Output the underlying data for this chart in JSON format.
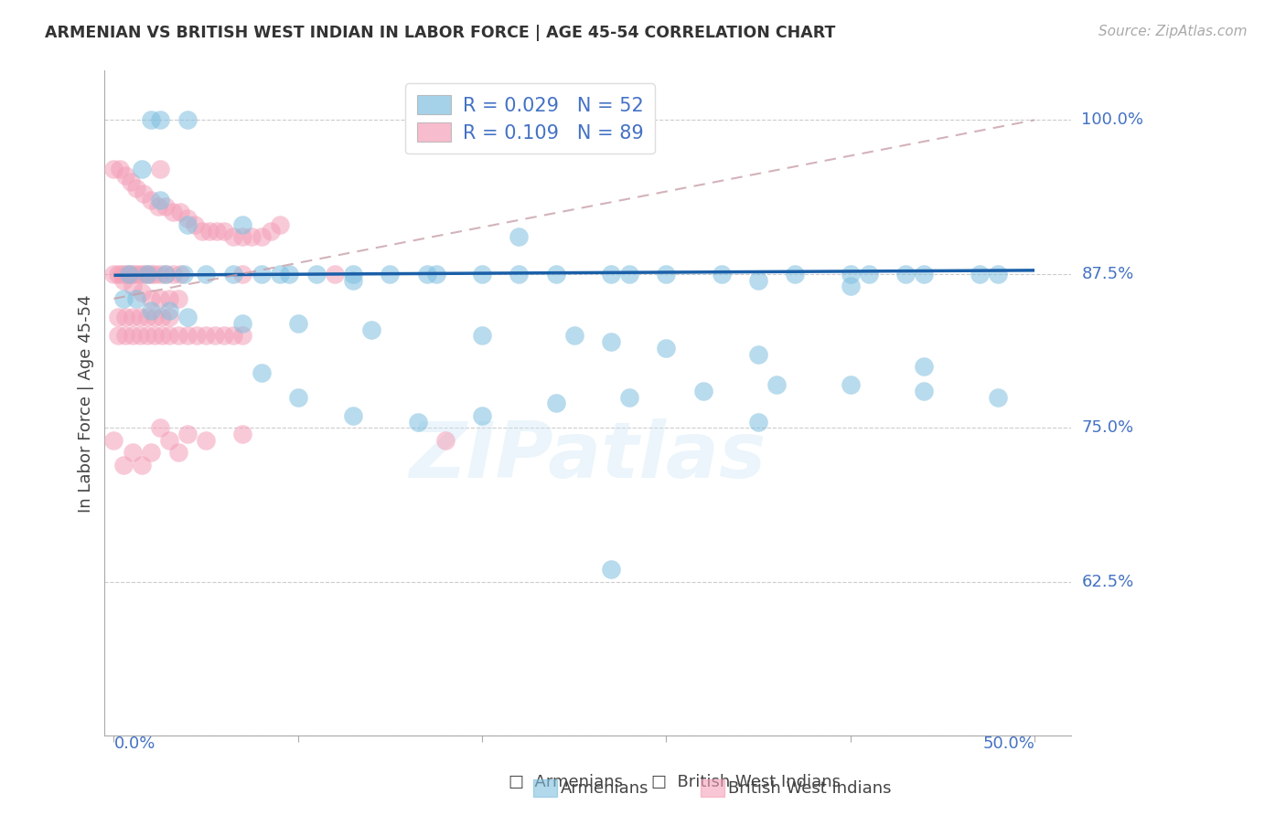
{
  "title": "ARMENIAN VS BRITISH WEST INDIAN IN LABOR FORCE | AGE 45-54 CORRELATION CHART",
  "source": "Source: ZipAtlas.com",
  "ylabel": "In Labor Force | Age 45-54",
  "ytick_positions": [
    0.625,
    0.75,
    0.875,
    1.0
  ],
  "ytick_labels": [
    "62.5%",
    "75.0%",
    "87.5%",
    "100.0%"
  ],
  "xtick_positions": [
    0.0,
    0.5
  ],
  "xtick_labels": [
    "0.0%",
    "50.0%"
  ],
  "armenian_color": "#7fbfdf",
  "bwi_color": "#f4a0b8",
  "trend_armenian_color": "#1a5fa8",
  "trend_bwi_color": "#c8a0a8",
  "background_color": "#ffffff",
  "watermark": "ZIPatlas",
  "xlim": [
    -0.005,
    0.52
  ],
  "ylim": [
    0.5,
    1.04
  ],
  "armenian_x": [
    0.02,
    0.025,
    0.04,
    0.015,
    0.025,
    0.04,
    0.07,
    0.09,
    0.13,
    0.17,
    0.22,
    0.28,
    0.35,
    0.4,
    0.43,
    0.47,
    0.008,
    0.018,
    0.028,
    0.038,
    0.05,
    0.065,
    0.08,
    0.095,
    0.11,
    0.13,
    0.15,
    0.175,
    0.2,
    0.24,
    0.27,
    0.3,
    0.33,
    0.37,
    0.41,
    0.44,
    0.48,
    0.22,
    0.4,
    0.005,
    0.012,
    0.02,
    0.03,
    0.04,
    0.07,
    0.1,
    0.14,
    0.2,
    0.27,
    0.35,
    0.44
  ],
  "armenian_y": [
    1.0,
    1.0,
    1.0,
    0.96,
    0.935,
    0.915,
    0.915,
    0.875,
    0.87,
    0.875,
    0.875,
    0.875,
    0.87,
    0.875,
    0.875,
    0.875,
    0.875,
    0.875,
    0.875,
    0.875,
    0.875,
    0.875,
    0.875,
    0.875,
    0.875,
    0.875,
    0.875,
    0.875,
    0.875,
    0.875,
    0.875,
    0.875,
    0.875,
    0.875,
    0.875,
    0.875,
    0.875,
    0.905,
    0.865,
    0.855,
    0.855,
    0.845,
    0.845,
    0.84,
    0.835,
    0.835,
    0.83,
    0.825,
    0.82,
    0.81,
    0.8
  ],
  "armenian_x2": [
    0.08,
    0.1,
    0.13,
    0.165,
    0.2,
    0.24,
    0.28,
    0.32,
    0.36,
    0.4,
    0.44,
    0.48,
    0.27,
    0.35,
    0.25,
    0.3
  ],
  "armenian_y2": [
    0.795,
    0.775,
    0.76,
    0.755,
    0.76,
    0.77,
    0.775,
    0.78,
    0.785,
    0.785,
    0.78,
    0.775,
    0.635,
    0.755,
    0.825,
    0.815
  ],
  "bwi_x": [
    0.0,
    0.002,
    0.004,
    0.006,
    0.008,
    0.01,
    0.012,
    0.014,
    0.016,
    0.018,
    0.02,
    0.022,
    0.025,
    0.028,
    0.032,
    0.036,
    0.0,
    0.003,
    0.006,
    0.009,
    0.012,
    0.016,
    0.02,
    0.024,
    0.028,
    0.032,
    0.036,
    0.04,
    0.044,
    0.048,
    0.052,
    0.056,
    0.06,
    0.065,
    0.07,
    0.075,
    0.08,
    0.085,
    0.09,
    0.005,
    0.01,
    0.015,
    0.02,
    0.025,
    0.03,
    0.035,
    0.002,
    0.006,
    0.01,
    0.014,
    0.018,
    0.022,
    0.026,
    0.03,
    0.002,
    0.006,
    0.01,
    0.014,
    0.018,
    0.022,
    0.026,
    0.03,
    0.035,
    0.04,
    0.045,
    0.05,
    0.055,
    0.06,
    0.065,
    0.07,
    0.025,
    0.18,
    0.12,
    0.07
  ],
  "bwi_y": [
    0.875,
    0.875,
    0.875,
    0.875,
    0.875,
    0.875,
    0.875,
    0.875,
    0.875,
    0.875,
    0.875,
    0.875,
    0.875,
    0.875,
    0.875,
    0.875,
    0.96,
    0.96,
    0.955,
    0.95,
    0.945,
    0.94,
    0.935,
    0.93,
    0.93,
    0.925,
    0.925,
    0.92,
    0.915,
    0.91,
    0.91,
    0.91,
    0.91,
    0.905,
    0.905,
    0.905,
    0.905,
    0.91,
    0.915,
    0.87,
    0.865,
    0.86,
    0.855,
    0.855,
    0.855,
    0.855,
    0.84,
    0.84,
    0.84,
    0.84,
    0.84,
    0.84,
    0.84,
    0.84,
    0.825,
    0.825,
    0.825,
    0.825,
    0.825,
    0.825,
    0.825,
    0.825,
    0.825,
    0.825,
    0.825,
    0.825,
    0.825,
    0.825,
    0.825,
    0.825,
    0.96,
    0.74,
    0.875,
    0.875
  ],
  "bwi_x2": [
    0.0,
    0.005,
    0.01,
    0.015,
    0.02,
    0.025,
    0.03,
    0.035,
    0.04,
    0.05,
    0.07
  ],
  "bwi_y2": [
    0.74,
    0.72,
    0.73,
    0.72,
    0.73,
    0.75,
    0.74,
    0.73,
    0.745,
    0.74,
    0.745
  ],
  "armenian_trend_x": [
    0.0,
    0.5
  ],
  "armenian_trend_y": [
    0.874,
    0.878
  ],
  "bwi_trend_x": [
    0.0,
    0.5
  ],
  "bwi_trend_y": [
    0.855,
    1.0
  ]
}
